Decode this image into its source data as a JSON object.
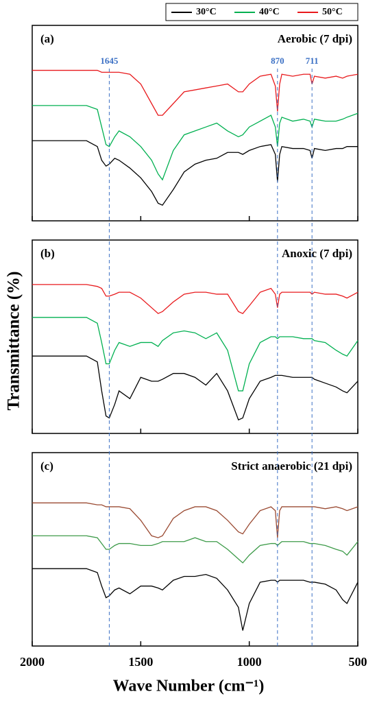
{
  "axis_labels": {
    "x": "Wave Number (cm⁻¹)",
    "y": "Transmittance (%)"
  },
  "reference_lines": [
    1645,
    870,
    711
  ],
  "chart_data": [
    {
      "type": "line",
      "label": "(a)",
      "title": "Aerobic (7 dpi)",
      "x": [
        2000,
        1900,
        1800,
        1750,
        1700,
        1680,
        1660,
        1645,
        1620,
        1600,
        1550,
        1500,
        1450,
        1420,
        1400,
        1350,
        1300,
        1250,
        1200,
        1150,
        1100,
        1050,
        1030,
        1000,
        950,
        900,
        880,
        870,
        860,
        850,
        800,
        750,
        720,
        711,
        700,
        650,
        600,
        570,
        550,
        500
      ],
      "xlim": [
        2000,
        500
      ],
      "ylim": [
        0,
        100
      ],
      "xticks": [
        2000,
        1500,
        1000,
        500
      ],
      "series": [
        {
          "name": "30°C",
          "color": "#000000",
          "values": [
            41,
            41,
            41,
            41,
            38,
            31,
            28,
            29,
            32,
            31,
            27,
            22,
            15,
            9,
            8,
            16,
            25,
            29,
            31,
            32,
            35,
            35,
            34,
            36,
            38,
            39,
            34,
            20,
            34,
            38,
            37,
            37,
            36,
            32,
            37,
            36,
            37,
            37,
            38,
            38
          ]
        },
        {
          "name": "40°C",
          "color": "#00b050",
          "values": [
            59,
            59,
            59,
            59,
            57,
            48,
            39,
            38,
            43,
            46,
            43,
            38,
            31,
            24,
            21,
            36,
            44,
            46,
            48,
            50,
            46,
            43,
            44,
            48,
            51,
            54,
            48,
            38,
            50,
            53,
            51,
            52,
            51,
            48,
            52,
            51,
            51,
            52,
            53,
            55
          ]
        },
        {
          "name": "50°C",
          "color": "#e8191c",
          "values": [
            77,
            77,
            77,
            77,
            77,
            76,
            76,
            76,
            76,
            76,
            75,
            70,
            60,
            54,
            54,
            60,
            66,
            67,
            68,
            69,
            70,
            66,
            66,
            70,
            74,
            75,
            69,
            56,
            70,
            75,
            74,
            75,
            75,
            70,
            74,
            73,
            74,
            73,
            74,
            75
          ]
        }
      ]
    },
    {
      "type": "line",
      "label": "(b)",
      "title": "Anoxic (7 dpi)",
      "x": [
        2000,
        1900,
        1800,
        1750,
        1700,
        1680,
        1660,
        1645,
        1620,
        1600,
        1550,
        1500,
        1450,
        1420,
        1400,
        1350,
        1300,
        1250,
        1200,
        1150,
        1100,
        1050,
        1030,
        1000,
        950,
        900,
        880,
        870,
        860,
        850,
        800,
        750,
        720,
        711,
        700,
        650,
        600,
        570,
        550,
        500
      ],
      "xlim": [
        2000,
        500
      ],
      "ylim": [
        0,
        100
      ],
      "xticks": [
        2000,
        1500,
        1000,
        500
      ],
      "series": [
        {
          "name": "30°C",
          "color": "#000000",
          "values": [
            40,
            40,
            40,
            40,
            37,
            22,
            9,
            8,
            15,
            22,
            18,
            29,
            27,
            27,
            28,
            31,
            31,
            29,
            25,
            31,
            22,
            7,
            8,
            18,
            27,
            29,
            30,
            30,
            30,
            30,
            29,
            29,
            29,
            29,
            28,
            26,
            24,
            22,
            21,
            27
          ]
        },
        {
          "name": "40°C",
          "color": "#00b050",
          "values": [
            60,
            60,
            60,
            60,
            57,
            47,
            36,
            36,
            43,
            47,
            45,
            47,
            47,
            45,
            48,
            52,
            53,
            52,
            49,
            52,
            43,
            22,
            22,
            36,
            47,
            50,
            50,
            49,
            50,
            50,
            50,
            49,
            49,
            49,
            48,
            47,
            43,
            41,
            40,
            48
          ]
        },
        {
          "name": "50°C",
          "color": "#e8191c",
          "values": [
            77,
            77,
            77,
            77,
            76,
            75,
            71,
            71,
            72,
            73,
            73,
            70,
            65,
            62,
            63,
            68,
            72,
            73,
            73,
            72,
            72,
            63,
            62,
            66,
            73,
            75,
            72,
            65,
            72,
            73,
            73,
            73,
            73,
            72,
            73,
            72,
            72,
            71,
            70,
            73
          ]
        }
      ]
    },
    {
      "type": "line",
      "label": "(c)",
      "title": "Strict anaerobic (21 dpi)",
      "x": [
        2000,
        1900,
        1800,
        1750,
        1700,
        1680,
        1660,
        1645,
        1620,
        1600,
        1550,
        1500,
        1450,
        1420,
        1400,
        1350,
        1300,
        1250,
        1200,
        1150,
        1100,
        1050,
        1030,
        1000,
        950,
        900,
        880,
        870,
        860,
        850,
        800,
        750,
        720,
        711,
        700,
        650,
        600,
        570,
        550,
        500
      ],
      "xlim": [
        2000,
        500
      ],
      "ylim": [
        0,
        100
      ],
      "xticks": [
        2000,
        1500,
        1000,
        500
      ],
      "series": [
        {
          "name": "30°C",
          "color": "#000000",
          "values": [
            40,
            40,
            40,
            40,
            38,
            31,
            25,
            26,
            29,
            30,
            27,
            31,
            31,
            30,
            29,
            34,
            36,
            36,
            37,
            35,
            29,
            20,
            8,
            22,
            33,
            34,
            34,
            33,
            34,
            34,
            34,
            34,
            33,
            33,
            33,
            32,
            29,
            24,
            22,
            33
          ]
        },
        {
          "name": "40°C",
          "color": "#3c9a48",
          "values": [
            57,
            57,
            57,
            57,
            56,
            53,
            50,
            50,
            52,
            53,
            53,
            52,
            52,
            53,
            54,
            54,
            54,
            56,
            54,
            54,
            50,
            45,
            43,
            47,
            52,
            53,
            53,
            52,
            53,
            54,
            54,
            54,
            53,
            53,
            53,
            52,
            50,
            49,
            47,
            54
          ]
        },
        {
          "name": "50°C",
          "color": "#9a4a32",
          "values": [
            74,
            74,
            74,
            74,
            73,
            73,
            72,
            72,
            72,
            72,
            71,
            65,
            57,
            56,
            57,
            66,
            70,
            72,
            72,
            70,
            65,
            59,
            58,
            63,
            70,
            72,
            70,
            56,
            70,
            72,
            72,
            72,
            72,
            72,
            72,
            71,
            72,
            71,
            70,
            72
          ]
        }
      ]
    }
  ]
}
